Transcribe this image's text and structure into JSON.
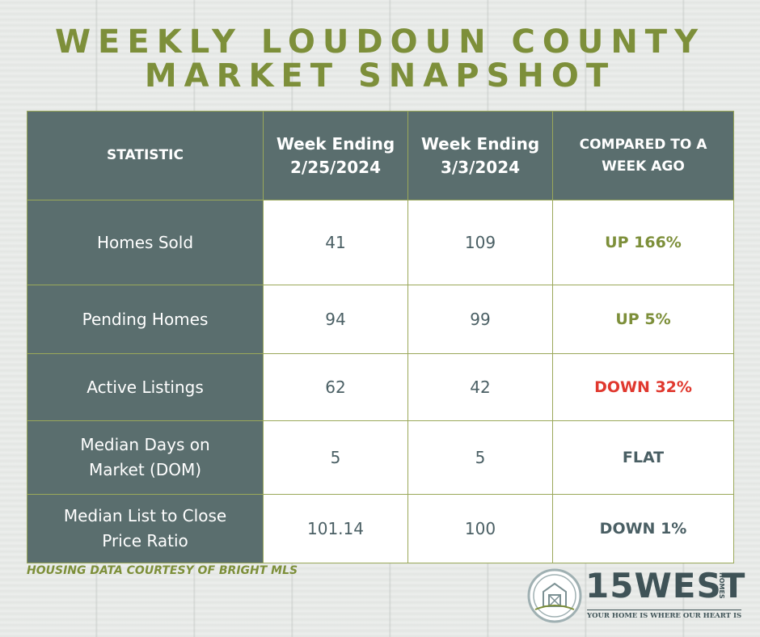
{
  "header": {
    "title_lines": [
      "WEEKLY LOUDOUN COUNTY",
      "MARKET SNAPSHOT"
    ]
  },
  "table": {
    "columns": [
      "STATISTIC",
      "Week Ending 2/25/2024",
      "Week Ending 3/3/2024",
      "COMPARED TO A WEEK AGO"
    ],
    "rows": [
      [
        "Homes Sold",
        "41",
        "109",
        "UP 166%"
      ],
      [
        "Pending Homes",
        "94",
        "99",
        "UP 5%"
      ],
      [
        "Active Listings",
        "62",
        "42",
        "DOWN 32%"
      ],
      [
        "Median Days on Market (DOM)",
        "5",
        "5",
        "FLAT"
      ],
      [
        "Median List to Close Price Ratio",
        "101.14",
        "100",
        "DOWN 1%"
      ]
    ]
  },
  "footer": {
    "source": "HOUSING DATA COURTESY OF BRIGHT MLS"
  },
  "logo": {
    "name": "15WEST",
    "sub": "HOMES",
    "tagline": "YOUR HOME IS WHERE OUR HEART IS"
  }
}
